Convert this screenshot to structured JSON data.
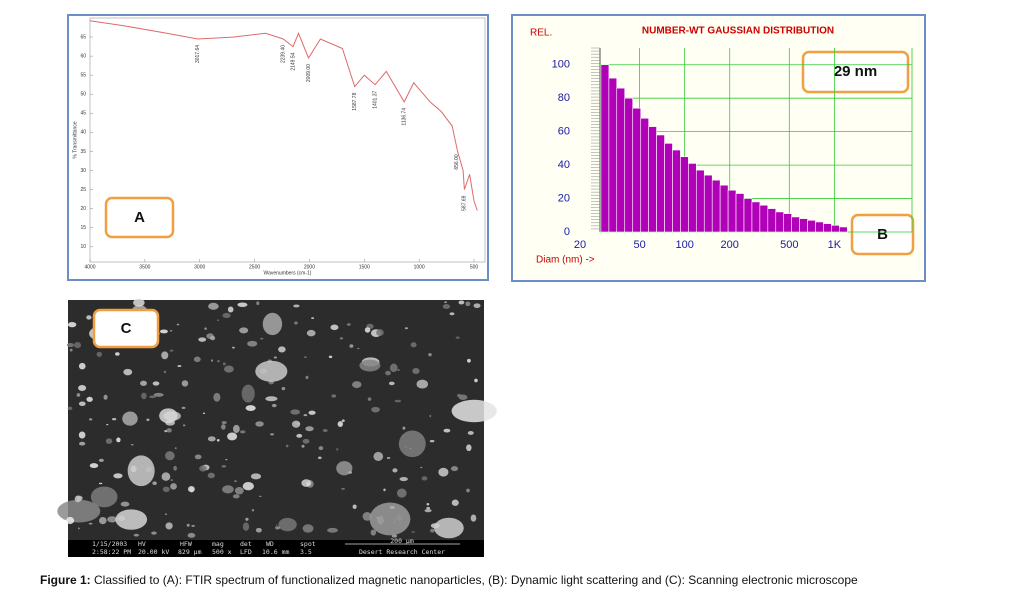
{
  "chart_data": [
    {
      "type": "line",
      "xlabel": "Wavenumbers (cm-1)",
      "ylabel": "% Transmittance",
      "color": "#e06a6a",
      "x": [
        4000,
        3700,
        3300,
        3017.64,
        2700,
        2400,
        2239.4,
        2149.54,
        2100,
        2009,
        1900,
        1700,
        1587.78,
        1500,
        1401.37,
        1300,
        1136.74,
        1050,
        900,
        800,
        700,
        650,
        600,
        587.69,
        540,
        500,
        470
      ],
      "values": [
        69.3,
        68,
        66,
        64.5,
        65,
        66,
        64.5,
        62.5,
        66,
        59.5,
        64.5,
        62,
        52,
        55,
        52.5,
        56,
        48,
        53,
        48,
        45.5,
        41.7,
        35,
        30,
        25,
        29,
        22,
        19.5
      ],
      "xlim": [
        4000,
        400
      ],
      "ylim": [
        6,
        70
      ],
      "xticks": [
        4000,
        3500,
        3000,
        2500,
        2000,
        1500,
        1000,
        500
      ],
      "yticks": [
        10,
        15,
        20,
        25,
        30,
        35,
        40,
        45,
        50,
        55,
        60,
        65
      ],
      "annotations": [
        {
          "x": 3017.64,
          "label": "3017.64"
        },
        {
          "x": 2239.4,
          "label": "2239.40"
        },
        {
          "x": 2149.54,
          "label": "2149.54"
        },
        {
          "x": 2009,
          "label": "2009.00"
        },
        {
          "x": 1587.78,
          "label": "1587.78"
        },
        {
          "x": 1401.37,
          "label": "1401.37"
        },
        {
          "x": 1136.74,
          "label": "1136.74"
        },
        {
          "x": 656,
          "label": "656.00"
        },
        {
          "x": 587.69,
          "label": "587.69"
        }
      ]
    },
    {
      "type": "histogram",
      "title": "NUMBER-WT GAUSSIAN DISTRIBUTION",
      "xlabel": "Diam (nm) ->",
      "ylabel": "REL.",
      "color": "#b000b8",
      "grid": true,
      "xlog": true,
      "bins": [
        27.6,
        31.2,
        35.2,
        39.8,
        45,
        50.9,
        57.5,
        64.9,
        73.4,
        82.9,
        93.7,
        105.9,
        119.6,
        135.2,
        152.8,
        172.6,
        195.1,
        220.4,
        249.1,
        281.5,
        318,
        359.4,
        406.1,
        458.9,
        518.5,
        585.9,
        662.1,
        748.2,
        845.4,
        955.3,
        1079.5,
        1219.8
      ],
      "values": [
        100,
        92,
        86,
        80,
        74,
        68,
        63,
        58,
        53,
        49,
        45,
        41,
        37,
        34,
        31,
        28,
        25,
        23,
        20,
        18,
        16,
        14,
        12,
        11,
        9,
        8,
        7,
        6,
        5,
        4,
        3
      ],
      "xlim": [
        20,
        3300
      ],
      "ylim": [
        0,
        110
      ],
      "xticks": [
        20,
        50,
        100,
        200,
        500,
        {
          "value": 1000,
          "label": "1K"
        }
      ],
      "yticks": [
        0,
        20,
        40,
        60,
        80,
        100
      ]
    }
  ],
  "panels": {
    "a": "A",
    "b": "B",
    "c": "C"
  },
  "size_badge": "29 nm",
  "sem": {
    "date": "1/15/2003",
    "time": "2:58:22 PM",
    "hv_label": "HV",
    "hv": "20.00 kV",
    "hfw_label": "HFW",
    "hfw": "829 µm",
    "mag_label": "mag",
    "mag": "500 x",
    "det_label": "det",
    "det": "LFD",
    "wd_label": "WD",
    "wd": "10.6 mm",
    "spot_label": "spot",
    "spot": "3.5",
    "scale": "200 µm",
    "center": "Desert Research Center"
  },
  "caption": {
    "label": "Figure 1:",
    "text": "Classified to (A): FTIR spectrum of functionalized magnetic nanoparticles,  (B): Dynamic light scattering and (C): Scanning electronic microscope"
  }
}
